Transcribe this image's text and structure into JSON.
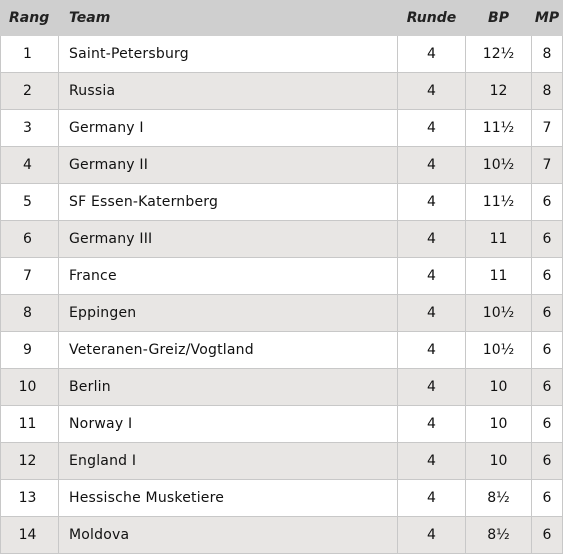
{
  "headers": {
    "rank": "Rang",
    "team": "Team",
    "round": "Runde",
    "bp": "BP",
    "mp": "MP"
  },
  "rows": [
    {
      "rank": "1",
      "team": "Saint-Petersburg",
      "round": "4",
      "bp": "12½",
      "mp": "8"
    },
    {
      "rank": "2",
      "team": "Russia",
      "round": "4",
      "bp": "12",
      "mp": "8"
    },
    {
      "rank": "3",
      "team": "Germany I",
      "round": "4",
      "bp": "11½",
      "mp": "7"
    },
    {
      "rank": "4",
      "team": "Germany II",
      "round": "4",
      "bp": "10½",
      "mp": "7"
    },
    {
      "rank": "5",
      "team": "SF Essen-Katernberg",
      "round": "4",
      "bp": "11½",
      "mp": "6"
    },
    {
      "rank": "6",
      "team": "Germany III",
      "round": "4",
      "bp": "11",
      "mp": "6"
    },
    {
      "rank": "7",
      "team": "France",
      "round": "4",
      "bp": "11",
      "mp": "6"
    },
    {
      "rank": "8",
      "team": "Eppingen",
      "round": "4",
      "bp": "10½",
      "mp": "6"
    },
    {
      "rank": "9",
      "team": "Veteranen-Greiz/Vogtland",
      "round": "4",
      "bp": "10½",
      "mp": "6"
    },
    {
      "rank": "10",
      "team": "Berlin",
      "round": "4",
      "bp": "10",
      "mp": "6"
    },
    {
      "rank": "11",
      "team": "Norway I",
      "round": "4",
      "bp": "10",
      "mp": "6"
    },
    {
      "rank": "12",
      "team": "England I",
      "round": "4",
      "bp": "10",
      "mp": "6"
    },
    {
      "rank": "13",
      "team": "Hessische Musketiere",
      "round": "4",
      "bp": "8½",
      "mp": "6"
    },
    {
      "rank": "14",
      "team": "Moldova",
      "round": "4",
      "bp": "8½",
      "mp": "6"
    }
  ]
}
